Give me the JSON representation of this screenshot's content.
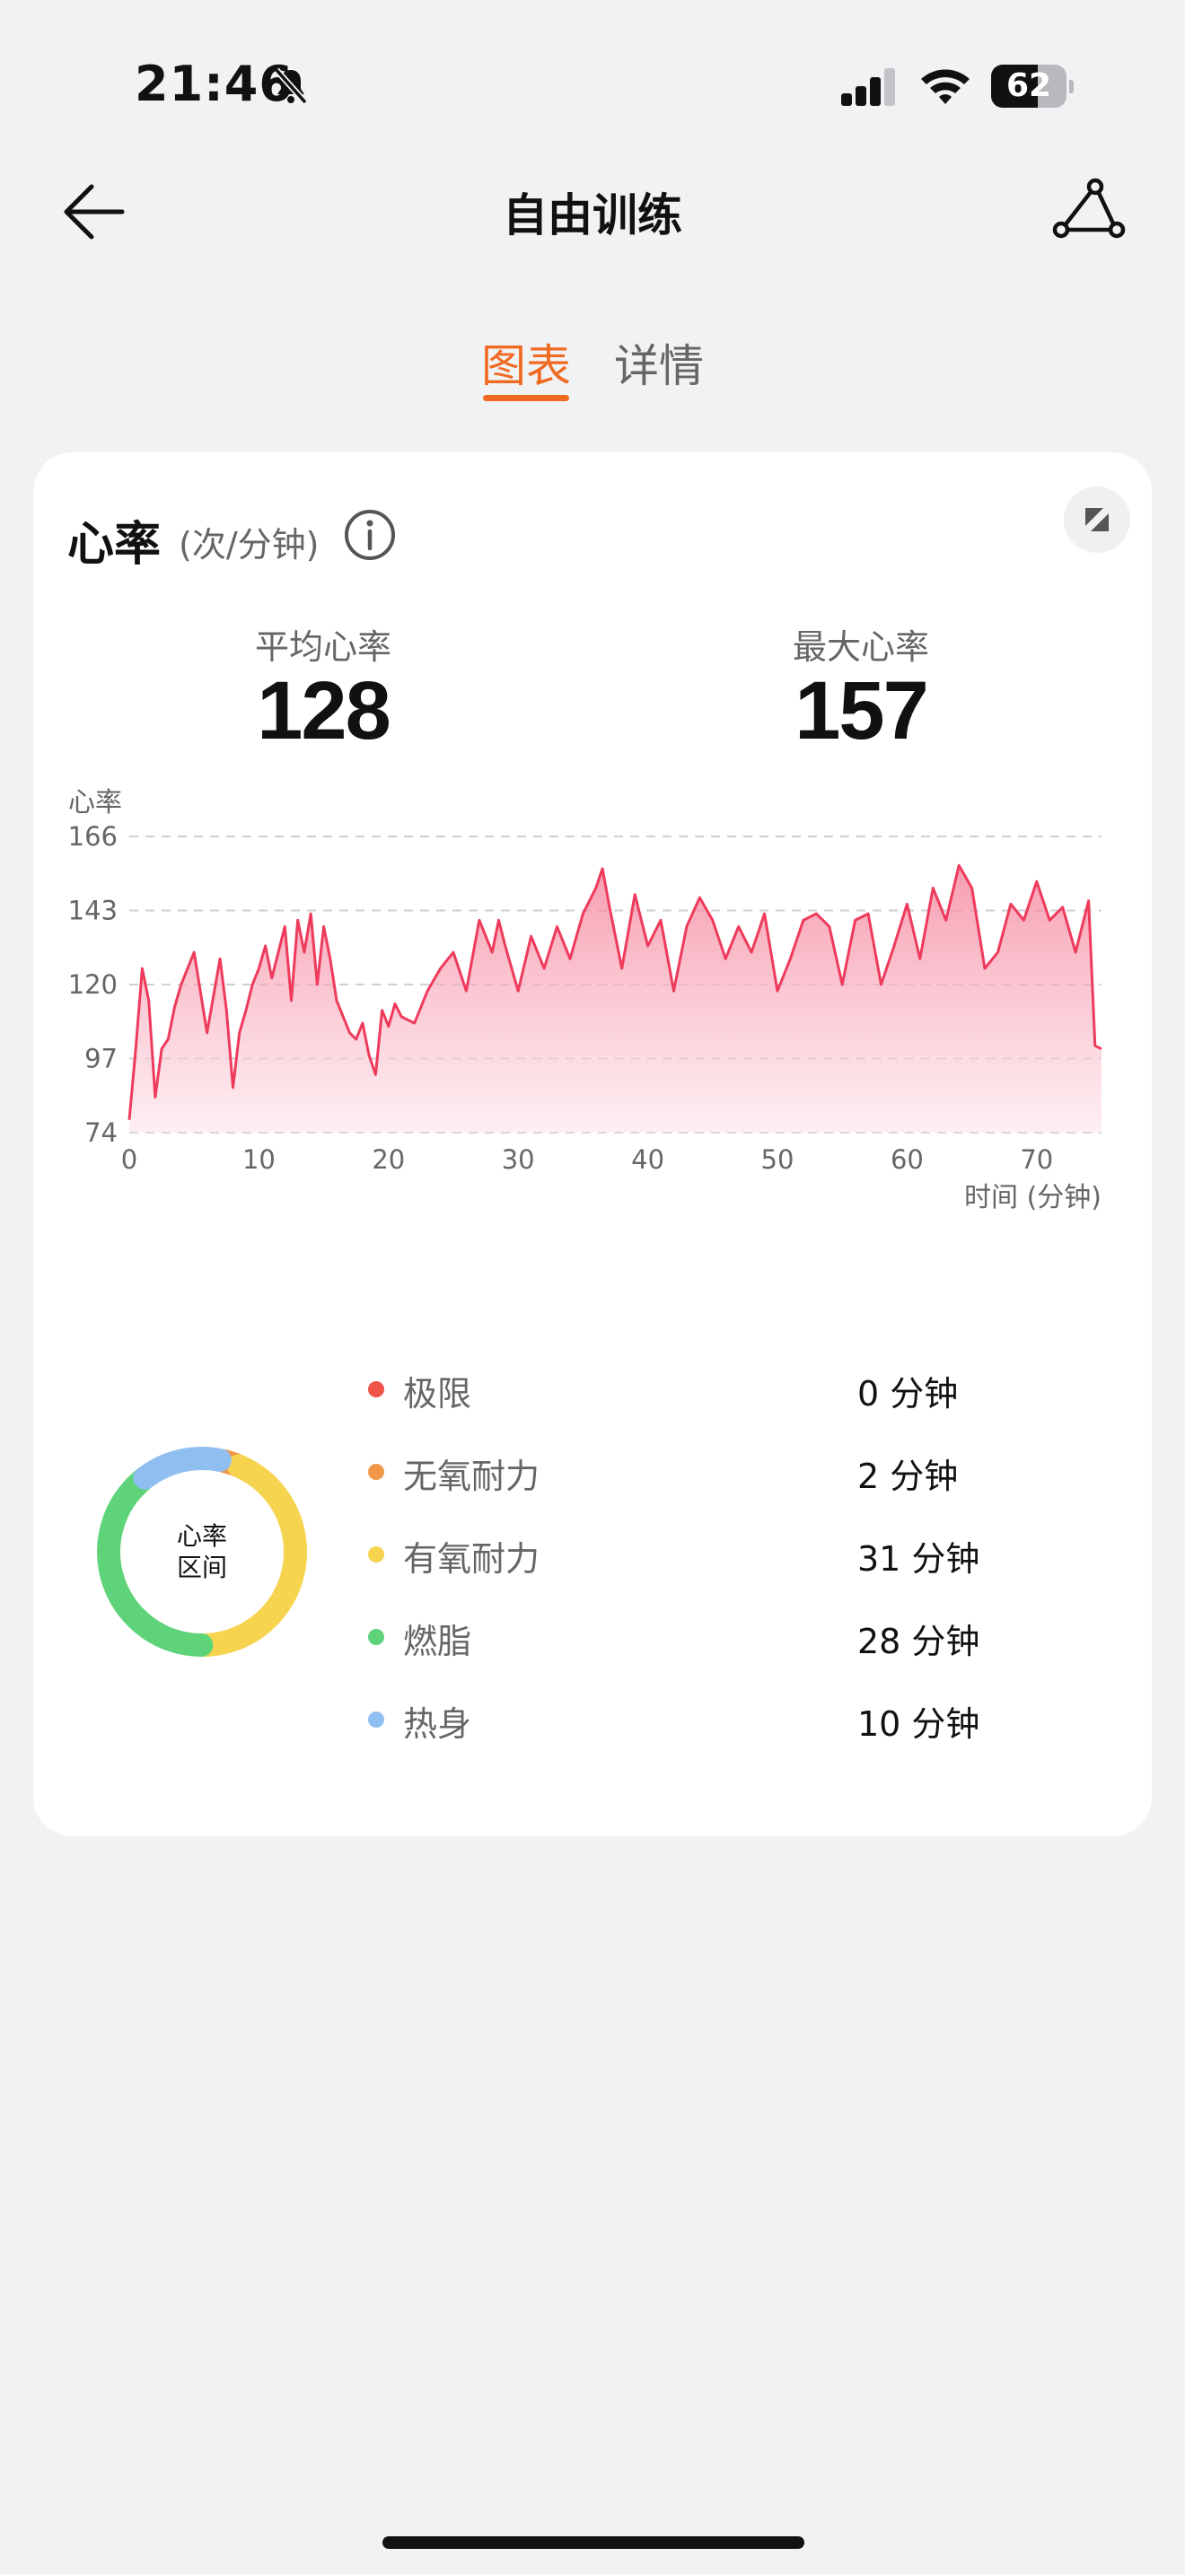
{
  "status": {
    "time": "21:46",
    "battery": "62",
    "battery_level": 0.62
  },
  "nav": {
    "title": "自由训练"
  },
  "tabs": [
    {
      "label": "图表",
      "active": true
    },
    {
      "label": "详情",
      "active": false
    }
  ],
  "card": {
    "title": "心率",
    "unit": "(次/分钟)",
    "avg_label": "平均心率",
    "avg_value": "128",
    "max_label": "最大心率",
    "max_value": "157"
  },
  "chart_data": {
    "type": "area",
    "ylabel": "心率",
    "xlabel": "时间 (分钟)",
    "yticks": [
      166,
      143,
      120,
      97,
      74
    ],
    "xticks": [
      0,
      10,
      20,
      30,
      40,
      50,
      60,
      70
    ],
    "xlim": [
      0,
      75
    ],
    "ylim": [
      74,
      166
    ],
    "line_color": "#ee3b5c",
    "fill_color": "#f9b8c7",
    "grid": true,
    "x": [
      0,
      0.5,
      1,
      1.5,
      2,
      2.5,
      3,
      3.5,
      4,
      5,
      6,
      7,
      7.5,
      8,
      8.5,
      9,
      9.5,
      10,
      10.5,
      11,
      12,
      12.5,
      13,
      13.5,
      14,
      14.5,
      15,
      15.5,
      16,
      17,
      17.5,
      18,
      18.5,
      19,
      19.5,
      20,
      20.5,
      21,
      22,
      23,
      24,
      25,
      26,
      27,
      28,
      28.5,
      29,
      30,
      31,
      32,
      33,
      34,
      35,
      36,
      36.5,
      37,
      38,
      39,
      40,
      41,
      42,
      43,
      44,
      45,
      46,
      47,
      48,
      49,
      50,
      51,
      52,
      53,
      54,
      55,
      56,
      57,
      58,
      59,
      60,
      61,
      62,
      63,
      64,
      65,
      66,
      67,
      68,
      69,
      70,
      71,
      72,
      73,
      74,
      74.5,
      75
    ],
    "y": [
      78,
      100,
      125,
      115,
      85,
      100,
      103,
      113,
      120,
      130,
      105,
      128,
      112,
      88,
      105,
      112,
      120,
      125,
      132,
      122,
      138,
      115,
      140,
      130,
      142,
      120,
      138,
      128,
      115,
      105,
      103,
      108,
      98,
      92,
      112,
      107,
      114,
      110,
      108,
      118,
      125,
      130,
      118,
      140,
      130,
      140,
      132,
      118,
      135,
      125,
      138,
      128,
      142,
      150,
      156,
      145,
      125,
      148,
      132,
      140,
      118,
      138,
      147,
      140,
      128,
      138,
      130,
      142,
      118,
      128,
      140,
      142,
      138,
      120,
      140,
      142,
      120,
      132,
      145,
      128,
      150,
      140,
      157,
      150,
      125,
      130,
      145,
      140,
      152,
      140,
      144,
      130,
      146,
      101,
      100
    ],
    "series": [
      {
        "values_key": "y"
      }
    ]
  },
  "zones": {
    "center_label_1": "心率",
    "center_label_2": "区间",
    "items": [
      {
        "name": "极限",
        "value": "0 分钟",
        "minutes": 0,
        "color": "#f0534a"
      },
      {
        "name": "无氧耐力",
        "value": "2 分钟",
        "minutes": 2,
        "color": "#f0974a"
      },
      {
        "name": "有氧耐力",
        "value": "31 分钟",
        "minutes": 31,
        "color": "#f6d44f"
      },
      {
        "name": "燃脂",
        "value": "28 分钟",
        "minutes": 28,
        "color": "#5fd37a"
      },
      {
        "name": "热身",
        "value": "10 分钟",
        "minutes": 10,
        "color": "#8fbff0"
      }
    ]
  }
}
